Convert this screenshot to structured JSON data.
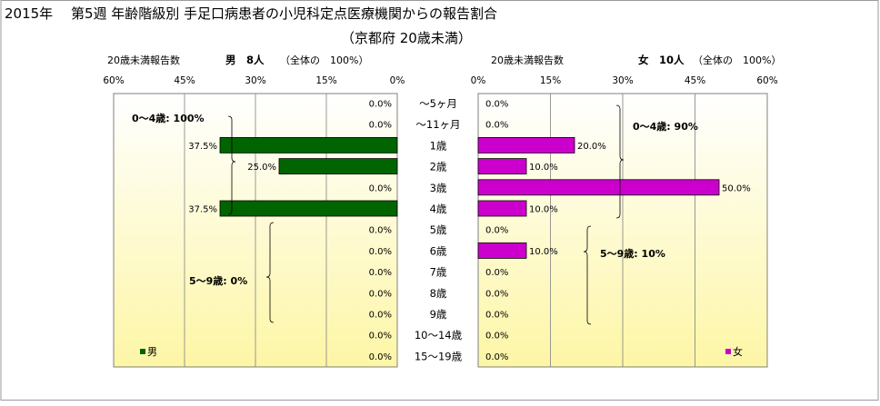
{
  "title": "2015年　 第5週 年齢階級別 手足口病患者の小児科定点医療機関からの報告割合",
  "subtitle": "（京都府 20歳未満）",
  "chart_data": [
    {
      "type": "bar",
      "side": "left",
      "header_label": "20歳未満報告数",
      "header_sex": "男　8人",
      "header_note": "（全体の　100%）",
      "legend": "男",
      "color": "#006400",
      "xlim": [
        0,
        60
      ],
      "ticks": [
        "60%",
        "45%",
        "30%",
        "15%",
        "0%"
      ],
      "values": [
        0,
        0,
        37.5,
        25.0,
        0,
        37.5,
        0,
        0,
        0,
        0,
        0,
        0,
        0
      ],
      "value_labels": [
        "0.0%",
        "0.0%",
        "37.5%",
        "25.0%",
        "0.0%",
        "37.5%",
        "0.0%",
        "0.0%",
        "0.0%",
        "0.0%",
        "0.0%",
        "0.0%",
        "0.0%"
      ],
      "groups": [
        {
          "label": "0～4歳: 100%"
        },
        {
          "label": "5～9歳: 0%"
        }
      ]
    },
    {
      "type": "bar",
      "side": "right",
      "header_label": "20歳未満報告数",
      "header_sex": "女　10人",
      "header_note": "（全体の　100%）",
      "legend": "女",
      "color": "#CC00CC",
      "xlim": [
        0,
        60
      ],
      "ticks": [
        "0%",
        "15%",
        "30%",
        "45%",
        "60%"
      ],
      "values": [
        0,
        0,
        20.0,
        10.0,
        50.0,
        10.0,
        0,
        10.0,
        0,
        0,
        0,
        0,
        0
      ],
      "value_labels": [
        "0.0%",
        "0.0%",
        "20.0%",
        "10.0%",
        "50.0%",
        "10.0%",
        "0.0%",
        "10.0%",
        "0.0%",
        "0.0%",
        "0.0%",
        "0.0%",
        "0.0%"
      ],
      "groups": [
        {
          "label": "0～4歳: 90%"
        },
        {
          "label": "5～9歳: 10%"
        }
      ]
    }
  ],
  "categories": [
    "～5ヶ月",
    "～11ヶ月",
    "1歳",
    "2歳",
    "3歳",
    "4歳",
    "5歳",
    "6歳",
    "7歳",
    "8歳",
    "9歳",
    "10～14歳",
    "15～19歳"
  ]
}
